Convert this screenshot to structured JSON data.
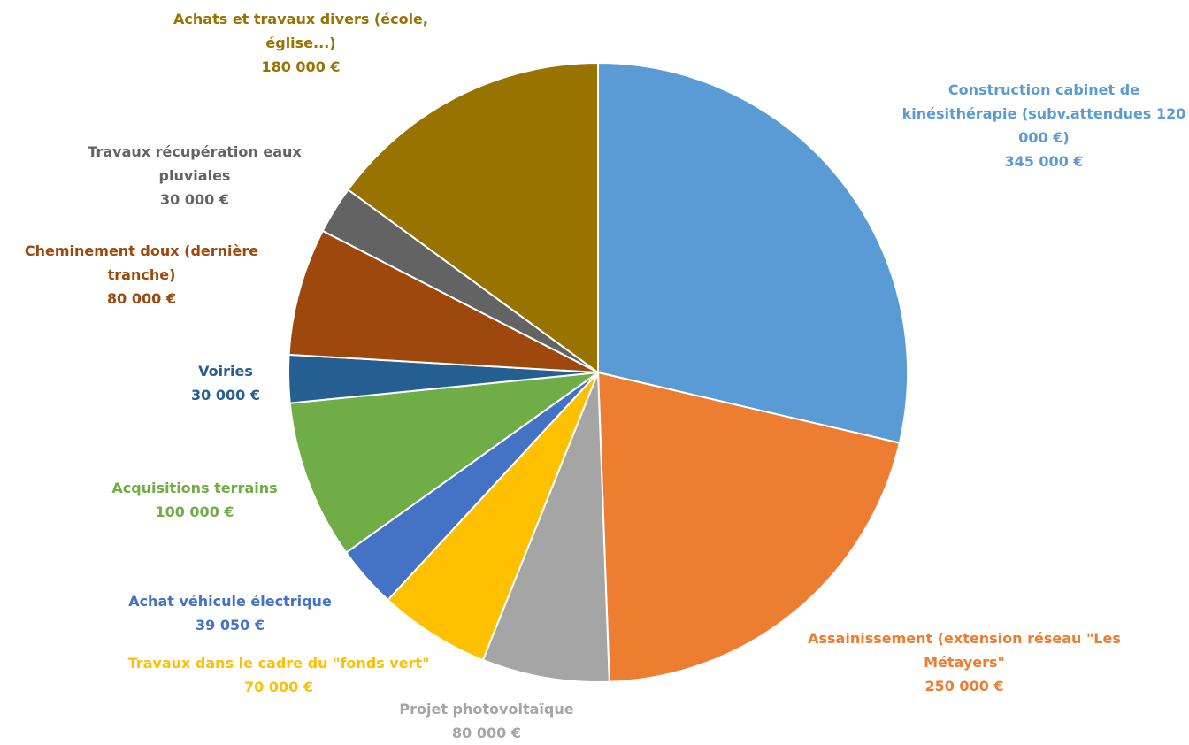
{
  "chart_data": {
    "type": "pie",
    "title": "",
    "start_angle_deg": 0,
    "direction": "clockwise",
    "currency_note": "",
    "slices": [
      {
        "label": "Construction cabinet de kinésithérapie (subv.attendues 120 000 €)",
        "value": 345000,
        "value_label": "345 000 €",
        "color": "#5B9BD5"
      },
      {
        "label": "Assainissement (extension réseau \"Les Métayers\"",
        "value": 250000,
        "value_label": "250 000 €",
        "color": "#ED7D31"
      },
      {
        "label": "Projet photovoltaïque",
        "value": 80000,
        "value_label": "80 000 €",
        "color": "#A5A5A5"
      },
      {
        "label": "Travaux dans le cadre du \"fonds vert\"",
        "value": 70000,
        "value_label": "70 000 €",
        "color": "#FFC000"
      },
      {
        "label": "Achat véhicule électrique",
        "value": 39050,
        "value_label": "39 050 €",
        "color": "#4472C4"
      },
      {
        "label": "Acquisitions terrains",
        "value": 100000,
        "value_label": "100 000 €",
        "color": "#70AD47"
      },
      {
        "label": "Voiries",
        "value": 30000,
        "value_label": "30 000 €",
        "color": "#255E91"
      },
      {
        "label": "Cheminement doux (dernière tranche)",
        "value": 80000,
        "value_label": "80 000 €",
        "color": "#9E480E"
      },
      {
        "label": "Travaux récupération eaux pluviales",
        "value": 30000,
        "value_label": "30 000 €",
        "color": "#636363"
      },
      {
        "label": "Achats et travaux divers (école, église...)",
        "value": 180000,
        "value_label": "180 000 €",
        "color": "#997300"
      }
    ]
  }
}
